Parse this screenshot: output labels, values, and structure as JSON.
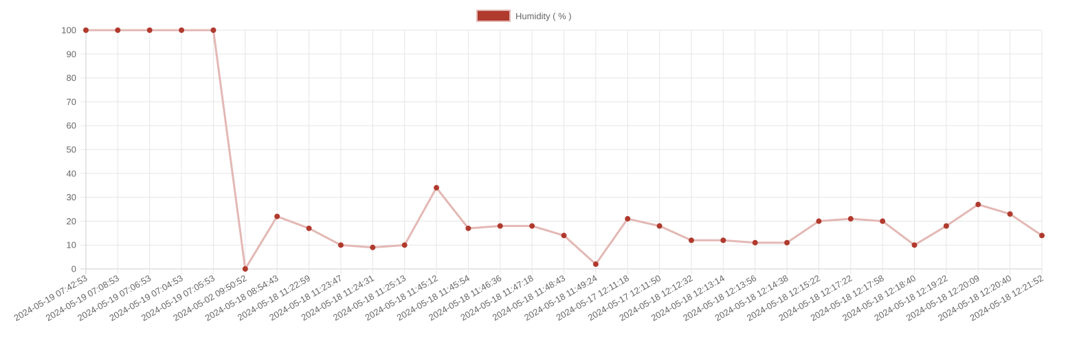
{
  "chart_data": {
    "type": "line",
    "x": [
      "2024-05-19 07:42:53",
      "2024-05-19 07:08:53",
      "2024-05-19 07:06:53",
      "2024-05-19 07:04:53",
      "2024-05-19 07:05:53",
      "2024-05-02 09:50:52",
      "2024-05-18 08:54:43",
      "2024-05-18 11:22:59",
      "2024-05-18 11:23:47",
      "2024-05-18 11:24:31",
      "2024-05-18 11:25:13",
      "2024-05-18 11:45:12",
      "2024-05-18 11:45:54",
      "2024-05-18 11:46:36",
      "2024-05-18 11:47:18",
      "2024-05-18 11:48:43",
      "2024-05-18 11:49:24",
      "2024-05-17 12:11:18",
      "2024-05-17 12:11:50",
      "2024-05-18 12:12:32",
      "2024-05-18 12:13:14",
      "2024-05-18 12:13:56",
      "2024-05-18 12:14:38",
      "2024-05-18 12:15:22",
      "2024-05-18 12:17:22",
      "2024-05-18 12:17:58",
      "2024-05-18 12:18:40",
      "2024-05-18 12:19:22",
      "2024-05-18 12:20:09",
      "2024-05-18 12:20:40",
      "2024-05-18 12:21:52"
    ],
    "series": [
      {
        "name": "Humidity ( % )",
        "values": [
          100,
          100,
          100,
          100,
          100,
          0,
          22,
          17,
          10,
          9,
          10,
          34,
          17,
          18,
          18,
          14,
          2,
          21,
          18,
          12,
          12,
          11,
          11,
          20,
          21,
          20,
          10,
          18,
          27,
          23,
          14
        ],
        "line_color": "#e3b8b4",
        "point_color": "#b03a2e"
      }
    ],
    "ylim": [
      0,
      100
    ],
    "yticks": [
      0,
      10,
      20,
      30,
      40,
      50,
      60,
      70,
      80,
      90,
      100
    ],
    "grid": true,
    "legend_position": "top",
    "legend_swatch_color": "#b03a2e",
    "title": "",
    "xlabel": "",
    "ylabel": ""
  }
}
